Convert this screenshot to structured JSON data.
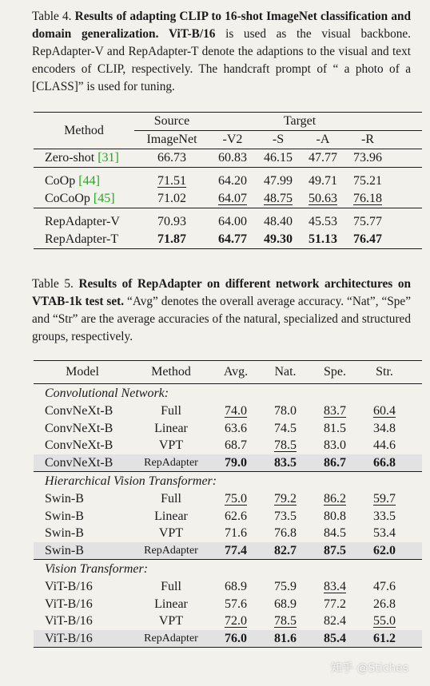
{
  "table4": {
    "caption_label": "Table 4.",
    "caption_bold": "Results of adapting CLIP to 16-shot ImageNet classification and domain generalization.",
    "caption_bold2": "ViT-B/16",
    "caption_rest": "is used as the visual backbone. RepAdapter-V and RepAdapter-T denote the adaptions to the visual and text encoders of CLIP, respectively. The handcraft prompt of “ a photo of a [CLASS]” is used for tuning.",
    "header": {
      "method": "Method",
      "source": "Source",
      "target": "Target",
      "cols": [
        "ImageNet",
        "-V2",
        "-S",
        "-A",
        "-R"
      ]
    },
    "rows": [
      {
        "method": "Zero-shot",
        "ref": "[31]",
        "values": [
          "66.73",
          "60.83",
          "46.15",
          "47.77",
          "73.96"
        ]
      },
      {
        "method": "CoOp",
        "ref": "[44]",
        "values": [
          "71.51",
          "64.20",
          "47.99",
          "49.71",
          "75.21"
        ]
      },
      {
        "method": "CoCoOp",
        "ref": "[45]",
        "values": [
          "71.02",
          "64.07",
          "48.75",
          "50.63",
          "76.18"
        ]
      },
      {
        "method": "RepAdapter-V",
        "ref": "",
        "values": [
          "70.93",
          "64.00",
          "48.40",
          "45.53",
          "75.77"
        ]
      },
      {
        "method": "RepAdapter-T",
        "ref": "",
        "values": [
          "71.87",
          "64.77",
          "49.30",
          "51.13",
          "76.47"
        ]
      }
    ]
  },
  "table5": {
    "caption_label": "Table 5.",
    "caption_bold": "Results of RepAdapter on different network architectures on VTAB-1k test set.",
    "caption_rest": "“Avg” denotes the overall average accuracy. “Nat”, “Spe” and “Str” are the average accuracies of the natural, specialized and structured groups, respectively.",
    "header": [
      "Model",
      "Method",
      "Avg.",
      "Nat.",
      "Spe.",
      "Str."
    ],
    "groups": [
      {
        "title": "Convolutional Network:",
        "rows": [
          {
            "model": "ConvNeXt-B",
            "method": "Full",
            "values": [
              "74.0",
              "78.0",
              "83.7",
              "60.4"
            ]
          },
          {
            "model": "ConvNeXt-B",
            "method": "Linear",
            "values": [
              "63.6",
              "74.5",
              "81.5",
              "34.8"
            ]
          },
          {
            "model": "ConvNeXt-B",
            "method": "VPT",
            "values": [
              "68.7",
              "78.5",
              "83.0",
              "44.6"
            ]
          },
          {
            "model": "ConvNeXt-B",
            "method": "RepAdapter",
            "values": [
              "79.0",
              "83.5",
              "86.7",
              "66.8"
            ]
          }
        ]
      },
      {
        "title": "Hierarchical Vision Transformer:",
        "rows": [
          {
            "model": "Swin-B",
            "method": "Full",
            "values": [
              "75.0",
              "79.2",
              "86.2",
              "59.7"
            ]
          },
          {
            "model": "Swin-B",
            "method": "Linear",
            "values": [
              "62.6",
              "73.5",
              "80.8",
              "33.5"
            ]
          },
          {
            "model": "Swin-B",
            "method": "VPT",
            "values": [
              "71.6",
              "76.8",
              "84.5",
              "53.4"
            ]
          },
          {
            "model": "Swin-B",
            "method": "RepAdapter",
            "values": [
              "77.4",
              "82.7",
              "87.5",
              "62.0"
            ]
          }
        ]
      },
      {
        "title": "Vision Transformer:",
        "rows": [
          {
            "model": "ViT-B/16",
            "method": "Full",
            "values": [
              "68.9",
              "75.9",
              "83.4",
              "47.6"
            ]
          },
          {
            "model": "ViT-B/16",
            "method": "Linear",
            "values": [
              "57.6",
              "68.9",
              "77.2",
              "26.8"
            ]
          },
          {
            "model": "ViT-B/16",
            "method": "VPT",
            "values": [
              "72.0",
              "78.5",
              "82.4",
              "55.0"
            ]
          },
          {
            "model": "ViT-B/16",
            "method": "RepAdapter",
            "values": [
              "76.0",
              "81.6",
              "85.4",
              "61.2"
            ]
          }
        ]
      }
    ]
  },
  "watermark": "知乎 @Stiches"
}
